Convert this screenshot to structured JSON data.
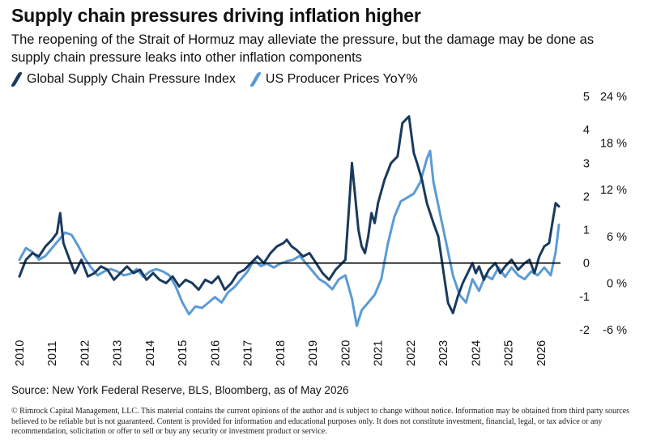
{
  "header": {
    "title": "Supply chain pressures driving inflation higher",
    "subtitle": "The reopening of the Strait of Hormuz may alleviate the pressure, but the damage may be done as supply chain pressure leaks into other inflation components"
  },
  "footer": {
    "source": "Source:  New York Federal Reserve, BLS, Bloomberg, as of May 2026",
    "disclaimer": "© Rimrock Capital Management, LLC.  This material contains the current opinions of the author and is subject to change without notice.  Information may be obtained from third party sources believed to be reliable but is not guaranteed.  Content is provided for information and educational purposes only. It does not constitute investment, financial, legal, or tax advice or any recommendation, solicitation or offer to sell or buy any security or investment product or service."
  },
  "colors": {
    "gscpi": "#1a3a5c",
    "ppi": "#5b9bd5",
    "zero_line": "#000000"
  },
  "chart_data": {
    "type": "line",
    "title": "Supply chain pressures driving inflation higher",
    "legend_position": "top-left",
    "grid": false,
    "x_ticks": [
      "2010",
      "2011",
      "2012",
      "2013",
      "2014",
      "2015",
      "2016",
      "2017",
      "2018",
      "2019",
      "2020",
      "2021",
      "2022",
      "2023",
      "2024",
      "2025",
      "2026"
    ],
    "x_range": [
      2010.0,
      2026.6
    ],
    "left_axis": {
      "label": "",
      "range": [
        -2,
        5
      ],
      "ticks": [
        "-2",
        "-1",
        "0",
        "1",
        "2",
        "3",
        "4",
        "5"
      ]
    },
    "right_axis": {
      "label": "",
      "range": [
        -6,
        24
      ],
      "ticks": [
        "-6 %",
        "0 %",
        "6 %",
        "12 %",
        "18 %",
        "24 %"
      ]
    },
    "series": [
      {
        "name": "Global Supply Chain Pressure Index",
        "axis": "left",
        "points": [
          [
            2010.0,
            -0.4
          ],
          [
            2010.2,
            0.1
          ],
          [
            2010.4,
            0.3
          ],
          [
            2010.6,
            0.2
          ],
          [
            2010.8,
            0.5
          ],
          [
            2011.0,
            0.7
          ],
          [
            2011.15,
            0.9
          ],
          [
            2011.25,
            1.5
          ],
          [
            2011.35,
            0.6
          ],
          [
            2011.5,
            0.2
          ],
          [
            2011.7,
            -0.3
          ],
          [
            2011.9,
            0.1
          ],
          [
            2012.1,
            -0.4
          ],
          [
            2012.3,
            -0.3
          ],
          [
            2012.5,
            -0.1
          ],
          [
            2012.7,
            -0.2
          ],
          [
            2012.9,
            -0.5
          ],
          [
            2013.1,
            -0.3
          ],
          [
            2013.3,
            -0.1
          ],
          [
            2013.5,
            -0.3
          ],
          [
            2013.7,
            -0.2
          ],
          [
            2013.9,
            -0.5
          ],
          [
            2014.1,
            -0.3
          ],
          [
            2014.3,
            -0.5
          ],
          [
            2014.5,
            -0.6
          ],
          [
            2014.7,
            -0.4
          ],
          [
            2014.9,
            -0.7
          ],
          [
            2015.1,
            -0.5
          ],
          [
            2015.3,
            -0.6
          ],
          [
            2015.5,
            -0.8
          ],
          [
            2015.7,
            -0.5
          ],
          [
            2015.9,
            -0.6
          ],
          [
            2016.1,
            -0.4
          ],
          [
            2016.3,
            -0.8
          ],
          [
            2016.5,
            -0.6
          ],
          [
            2016.7,
            -0.3
          ],
          [
            2016.9,
            -0.2
          ],
          [
            2017.1,
            0.0
          ],
          [
            2017.3,
            0.2
          ],
          [
            2017.5,
            0.0
          ],
          [
            2017.7,
            0.3
          ],
          [
            2017.9,
            0.5
          ],
          [
            2018.1,
            0.6
          ],
          [
            2018.2,
            0.7
          ],
          [
            2018.35,
            0.5
          ],
          [
            2018.5,
            0.4
          ],
          [
            2018.7,
            0.2
          ],
          [
            2018.9,
            0.3
          ],
          [
            2019.1,
            0.0
          ],
          [
            2019.3,
            -0.3
          ],
          [
            2019.5,
            -0.5
          ],
          [
            2019.7,
            -0.2
          ],
          [
            2019.9,
            0.0
          ],
          [
            2020.0,
            0.1
          ],
          [
            2020.1,
            1.5
          ],
          [
            2020.2,
            3.0
          ],
          [
            2020.3,
            2.0
          ],
          [
            2020.4,
            1.0
          ],
          [
            2020.5,
            0.5
          ],
          [
            2020.6,
            0.3
          ],
          [
            2020.7,
            0.8
          ],
          [
            2020.8,
            1.5
          ],
          [
            2020.9,
            1.2
          ],
          [
            2021.0,
            1.8
          ],
          [
            2021.2,
            2.5
          ],
          [
            2021.4,
            3.0
          ],
          [
            2021.6,
            3.2
          ],
          [
            2021.75,
            4.2
          ],
          [
            2021.95,
            4.4
          ],
          [
            2022.1,
            3.3
          ],
          [
            2022.2,
            3.0
          ],
          [
            2022.35,
            2.5
          ],
          [
            2022.5,
            1.8
          ],
          [
            2022.7,
            1.2
          ],
          [
            2022.85,
            0.8
          ],
          [
            2023.0,
            -0.2
          ],
          [
            2023.15,
            -1.2
          ],
          [
            2023.3,
            -1.5
          ],
          [
            2023.45,
            -1.0
          ],
          [
            2023.6,
            -0.6
          ],
          [
            2023.75,
            -0.3
          ],
          [
            2023.9,
            0.0
          ],
          [
            2024.0,
            -0.3
          ],
          [
            2024.1,
            -0.1
          ],
          [
            2024.25,
            -0.5
          ],
          [
            2024.4,
            -0.2
          ],
          [
            2024.6,
            0.0
          ],
          [
            2024.75,
            -0.3
          ],
          [
            2024.9,
            -0.1
          ],
          [
            2025.1,
            0.1
          ],
          [
            2025.3,
            -0.2
          ],
          [
            2025.5,
            0.0
          ],
          [
            2025.65,
            0.1
          ],
          [
            2025.8,
            -0.3
          ],
          [
            2025.95,
            0.2
          ],
          [
            2026.1,
            0.5
          ],
          [
            2026.25,
            0.6
          ],
          [
            2026.35,
            1.2
          ],
          [
            2026.45,
            1.8
          ],
          [
            2026.55,
            1.7
          ]
        ]
      },
      {
        "name": "US Producer Prices YoY%",
        "axis": "right",
        "points": [
          [
            2010.0,
            3.0
          ],
          [
            2010.2,
            4.5
          ],
          [
            2010.4,
            4.0
          ],
          [
            2010.6,
            3.0
          ],
          [
            2010.8,
            3.5
          ],
          [
            2011.0,
            4.5
          ],
          [
            2011.2,
            5.5
          ],
          [
            2011.4,
            6.5
          ],
          [
            2011.6,
            6.2
          ],
          [
            2011.8,
            4.8
          ],
          [
            2012.0,
            3.2
          ],
          [
            2012.2,
            2.0
          ],
          [
            2012.4,
            1.0
          ],
          [
            2012.6,
            1.5
          ],
          [
            2012.8,
            1.8
          ],
          [
            2013.0,
            1.5
          ],
          [
            2013.2,
            1.0
          ],
          [
            2013.4,
            1.2
          ],
          [
            2013.6,
            1.8
          ],
          [
            2013.8,
            0.8
          ],
          [
            2014.0,
            1.5
          ],
          [
            2014.2,
            1.8
          ],
          [
            2014.4,
            1.5
          ],
          [
            2014.6,
            1.0
          ],
          [
            2014.8,
            -0.5
          ],
          [
            2015.0,
            -2.5
          ],
          [
            2015.2,
            -4.0
          ],
          [
            2015.4,
            -3.0
          ],
          [
            2015.6,
            -3.2
          ],
          [
            2015.8,
            -2.5
          ],
          [
            2016.0,
            -1.8
          ],
          [
            2016.2,
            -2.5
          ],
          [
            2016.4,
            -1.2
          ],
          [
            2016.6,
            -0.5
          ],
          [
            2016.8,
            0.5
          ],
          [
            2017.0,
            1.5
          ],
          [
            2017.2,
            3.0
          ],
          [
            2017.4,
            2.2
          ],
          [
            2017.6,
            2.5
          ],
          [
            2017.8,
            2.0
          ],
          [
            2018.0,
            2.5
          ],
          [
            2018.2,
            2.8
          ],
          [
            2018.4,
            3.0
          ],
          [
            2018.6,
            3.5
          ],
          [
            2018.8,
            2.5
          ],
          [
            2019.0,
            1.5
          ],
          [
            2019.2,
            0.5
          ],
          [
            2019.4,
            0.0
          ],
          [
            2019.6,
            -0.8
          ],
          [
            2019.8,
            0.5
          ],
          [
            2020.0,
            1.0
          ],
          [
            2020.2,
            -2.0
          ],
          [
            2020.35,
            -5.5
          ],
          [
            2020.5,
            -3.5
          ],
          [
            2020.7,
            -2.5
          ],
          [
            2020.9,
            -1.5
          ],
          [
            2021.1,
            0.5
          ],
          [
            2021.3,
            5.0
          ],
          [
            2021.5,
            8.5
          ],
          [
            2021.7,
            10.5
          ],
          [
            2021.9,
            11.0
          ],
          [
            2022.1,
            11.5
          ],
          [
            2022.3,
            13.0
          ],
          [
            2022.5,
            16.0
          ],
          [
            2022.6,
            17.0
          ],
          [
            2022.7,
            13.0
          ],
          [
            2022.9,
            9.0
          ],
          [
            2023.1,
            5.0
          ],
          [
            2023.3,
            1.0
          ],
          [
            2023.5,
            -1.5
          ],
          [
            2023.7,
            -2.5
          ],
          [
            2023.9,
            0.5
          ],
          [
            2024.1,
            -1.0
          ],
          [
            2024.3,
            1.0
          ],
          [
            2024.5,
            0.5
          ],
          [
            2024.7,
            2.0
          ],
          [
            2024.9,
            0.8
          ],
          [
            2025.1,
            2.0
          ],
          [
            2025.3,
            1.0
          ],
          [
            2025.5,
            0.5
          ],
          [
            2025.7,
            1.5
          ],
          [
            2025.9,
            1.0
          ],
          [
            2026.1,
            2.0
          ],
          [
            2026.3,
            1.0
          ],
          [
            2026.45,
            4.0
          ],
          [
            2026.55,
            7.5
          ]
        ]
      }
    ]
  }
}
